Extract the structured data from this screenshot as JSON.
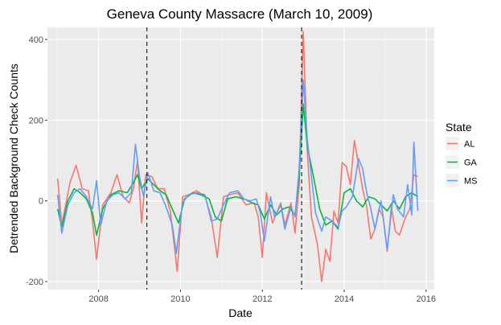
{
  "chart_data": {
    "type": "line",
    "title": "Geneva County Massacre (March 10, 2009)",
    "xlabel": "Date",
    "ylabel": "Detrended Background Check Counts",
    "xlim": [
      2006.75,
      2016.2
    ],
    "ylim": [
      -220,
      430
    ],
    "x_ticks": [
      2008,
      2010,
      2012,
      2014,
      2016
    ],
    "x_tick_labels": [
      "2008",
      "2010",
      "2012",
      "2014",
      "2016"
    ],
    "y_ticks": [
      -200,
      0,
      200,
      400
    ],
    "y_tick_labels": [
      "-200",
      "0",
      "200",
      "400"
    ],
    "grid": true,
    "legend": {
      "title": "State",
      "position": "right"
    },
    "vlines": [
      2009.18,
      2012.96
    ],
    "series": [
      {
        "name": "AL",
        "color": "#f8766d",
        "points": [
          [
            2007.0,
            55
          ],
          [
            2007.1,
            -60
          ],
          [
            2007.3,
            45
          ],
          [
            2007.45,
            88
          ],
          [
            2007.6,
            30
          ],
          [
            2007.75,
            25
          ],
          [
            2007.85,
            -50
          ],
          [
            2007.95,
            -145
          ],
          [
            2008.1,
            -10
          ],
          [
            2008.3,
            20
          ],
          [
            2008.45,
            65
          ],
          [
            2008.6,
            10
          ],
          [
            2008.75,
            -5
          ],
          [
            2008.85,
            30
          ],
          [
            2008.95,
            100
          ],
          [
            2009.05,
            -55
          ],
          [
            2009.15,
            65
          ],
          [
            2009.3,
            60
          ],
          [
            2009.45,
            30
          ],
          [
            2009.6,
            30
          ],
          [
            2009.75,
            -25
          ],
          [
            2009.92,
            -175
          ],
          [
            2010.05,
            10
          ],
          [
            2010.2,
            15
          ],
          [
            2010.4,
            25
          ],
          [
            2010.6,
            10
          ],
          [
            2010.75,
            -40
          ],
          [
            2010.9,
            -140
          ],
          [
            2011.05,
            10
          ],
          [
            2011.2,
            15
          ],
          [
            2011.4,
            20
          ],
          [
            2011.6,
            -10
          ],
          [
            2011.8,
            -5
          ],
          [
            2011.9,
            -40
          ],
          [
            2012.0,
            -140
          ],
          [
            2012.1,
            20
          ],
          [
            2012.25,
            -55
          ],
          [
            2012.45,
            -5
          ],
          [
            2012.55,
            -60
          ],
          [
            2012.7,
            -5
          ],
          [
            2012.8,
            -80
          ],
          [
            2012.9,
            40
          ],
          [
            2013.0,
            420
          ],
          [
            2013.1,
            120
          ],
          [
            2013.2,
            -40
          ],
          [
            2013.35,
            -110
          ],
          [
            2013.45,
            -200
          ],
          [
            2013.55,
            -120
          ],
          [
            2013.65,
            -150
          ],
          [
            2013.75,
            -25
          ],
          [
            2013.85,
            -55
          ],
          [
            2013.95,
            95
          ],
          [
            2014.05,
            85
          ],
          [
            2014.15,
            40
          ],
          [
            2014.25,
            150
          ],
          [
            2014.35,
            90
          ],
          [
            2014.45,
            30
          ],
          [
            2014.55,
            -15
          ],
          [
            2014.65,
            -95
          ],
          [
            2014.75,
            -70
          ],
          [
            2014.85,
            -20
          ],
          [
            2014.95,
            -40
          ],
          [
            2015.05,
            -125
          ],
          [
            2015.15,
            -15
          ],
          [
            2015.25,
            -75
          ],
          [
            2015.35,
            -85
          ],
          [
            2015.5,
            -40
          ],
          [
            2015.6,
            -20
          ],
          [
            2015.7,
            65
          ],
          [
            2015.8,
            60
          ]
        ]
      },
      {
        "name": "GA",
        "color": "#00ba38",
        "points": [
          [
            2007.0,
            -20
          ],
          [
            2007.1,
            -65
          ],
          [
            2007.25,
            0
          ],
          [
            2007.4,
            30
          ],
          [
            2007.55,
            20
          ],
          [
            2007.7,
            5
          ],
          [
            2007.85,
            -30
          ],
          [
            2007.95,
            -85
          ],
          [
            2008.1,
            -20
          ],
          [
            2008.3,
            15
          ],
          [
            2008.5,
            25
          ],
          [
            2008.7,
            20
          ],
          [
            2008.85,
            45
          ],
          [
            2008.95,
            65
          ],
          [
            2009.05,
            30
          ],
          [
            2009.2,
            55
          ],
          [
            2009.35,
            40
          ],
          [
            2009.5,
            25
          ],
          [
            2009.65,
            15
          ],
          [
            2009.8,
            -20
          ],
          [
            2009.95,
            -55
          ],
          [
            2010.1,
            5
          ],
          [
            2010.3,
            20
          ],
          [
            2010.5,
            15
          ],
          [
            2010.7,
            5
          ],
          [
            2010.85,
            -40
          ],
          [
            2011.0,
            -50
          ],
          [
            2011.15,
            5
          ],
          [
            2011.35,
            10
          ],
          [
            2011.55,
            5
          ],
          [
            2011.75,
            -5
          ],
          [
            2011.9,
            -10
          ],
          [
            2012.05,
            -45
          ],
          [
            2012.2,
            -10
          ],
          [
            2012.35,
            -35
          ],
          [
            2012.5,
            -20
          ],
          [
            2012.65,
            -15
          ],
          [
            2012.8,
            -35
          ],
          [
            2012.9,
            60
          ],
          [
            2013.0,
            240
          ],
          [
            2013.1,
            135
          ],
          [
            2013.25,
            60
          ],
          [
            2013.4,
            -20
          ],
          [
            2013.55,
            -60
          ],
          [
            2013.7,
            -50
          ],
          [
            2013.85,
            -70
          ],
          [
            2014.0,
            20
          ],
          [
            2014.15,
            30
          ],
          [
            2014.3,
            0
          ],
          [
            2014.45,
            -15
          ],
          [
            2014.6,
            10
          ],
          [
            2014.75,
            5
          ],
          [
            2014.9,
            -10
          ],
          [
            2015.05,
            -25
          ],
          [
            2015.2,
            0
          ],
          [
            2015.35,
            -20
          ],
          [
            2015.5,
            10
          ],
          [
            2015.65,
            20
          ],
          [
            2015.8,
            10
          ]
        ]
      },
      {
        "name": "MS",
        "color": "#619cff",
        "points": [
          [
            2007.0,
            15
          ],
          [
            2007.1,
            -80
          ],
          [
            2007.25,
            -10
          ],
          [
            2007.4,
            20
          ],
          [
            2007.55,
            30
          ],
          [
            2007.7,
            10
          ],
          [
            2007.85,
            -20
          ],
          [
            2007.95,
            50
          ],
          [
            2008.05,
            -60
          ],
          [
            2008.2,
            0
          ],
          [
            2008.35,
            15
          ],
          [
            2008.5,
            20
          ],
          [
            2008.65,
            5
          ],
          [
            2008.8,
            20
          ],
          [
            2008.9,
            140
          ],
          [
            2009.0,
            60
          ],
          [
            2009.1,
            10
          ],
          [
            2009.2,
            70
          ],
          [
            2009.35,
            25
          ],
          [
            2009.5,
            20
          ],
          [
            2009.65,
            -15
          ],
          [
            2009.8,
            -60
          ],
          [
            2009.9,
            -130
          ],
          [
            2010.05,
            -5
          ],
          [
            2010.2,
            15
          ],
          [
            2010.4,
            20
          ],
          [
            2010.6,
            15
          ],
          [
            2010.75,
            -50
          ],
          [
            2010.9,
            -45
          ],
          [
            2011.05,
            -10
          ],
          [
            2011.2,
            20
          ],
          [
            2011.4,
            25
          ],
          [
            2011.55,
            5
          ],
          [
            2011.7,
            0
          ],
          [
            2011.85,
            5
          ],
          [
            2011.95,
            -30
          ],
          [
            2012.05,
            -100
          ],
          [
            2012.2,
            10
          ],
          [
            2012.3,
            -40
          ],
          [
            2012.45,
            -10
          ],
          [
            2012.55,
            -70
          ],
          [
            2012.7,
            -15
          ],
          [
            2012.8,
            -40
          ],
          [
            2012.9,
            80
          ],
          [
            2013.0,
            300
          ],
          [
            2013.1,
            150
          ],
          [
            2013.2,
            60
          ],
          [
            2013.3,
            -30
          ],
          [
            2013.45,
            -75
          ],
          [
            2013.55,
            -40
          ],
          [
            2013.7,
            -50
          ],
          [
            2013.85,
            -65
          ],
          [
            2013.95,
            -25
          ],
          [
            2014.05,
            -15
          ],
          [
            2014.2,
            10
          ],
          [
            2014.35,
            105
          ],
          [
            2014.45,
            80
          ],
          [
            2014.55,
            20
          ],
          [
            2014.65,
            -20
          ],
          [
            2014.75,
            -70
          ],
          [
            2014.9,
            0
          ],
          [
            2015.05,
            -120
          ],
          [
            2015.2,
            15
          ],
          [
            2015.3,
            -20
          ],
          [
            2015.45,
            -40
          ],
          [
            2015.55,
            40
          ],
          [
            2015.65,
            -35
          ],
          [
            2015.7,
            145
          ],
          [
            2015.8,
            -25
          ]
        ]
      }
    ]
  }
}
